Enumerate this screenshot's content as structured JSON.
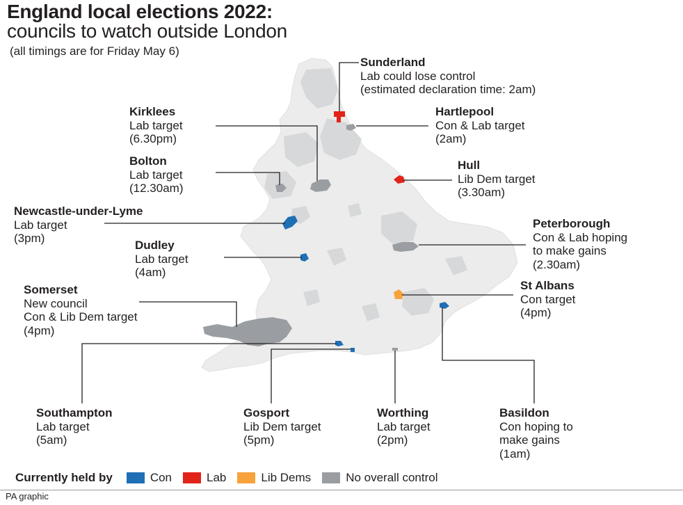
{
  "title": "England local elections 2022:",
  "subtitle": "councils to watch outside London",
  "note": "(all timings are for Friday May 6)",
  "colors": {
    "con": "#1f6fb5",
    "lab": "#e2231a",
    "libdem": "#f7a23b",
    "noc": "#9a9ea3",
    "land": "#ececec",
    "other_councils": "#d6d8da",
    "leader": "#231f20"
  },
  "councils": {
    "sunderland": {
      "name": "Sunderland",
      "lines": [
        "Lab could lose control",
        "(estimated declaration time: 2am)"
      ],
      "party": "lab"
    },
    "hartlepool": {
      "name": "Hartlepool",
      "lines": [
        "Con & Lab target",
        "(2am)"
      ],
      "party": "noc"
    },
    "kirklees": {
      "name": "Kirklees",
      "lines": [
        "Lab target",
        "(6.30pm)"
      ],
      "party": "noc"
    },
    "bolton": {
      "name": "Bolton",
      "lines": [
        "Lab target",
        "(12.30am)"
      ],
      "party": "noc"
    },
    "hull": {
      "name": "Hull",
      "lines": [
        "Lib Dem target",
        "(3.30am)"
      ],
      "party": "lab"
    },
    "newcastle": {
      "name": "Newcastle-under-Lyme",
      "lines": [
        "Lab target",
        "(3pm)"
      ],
      "party": "con"
    },
    "peterborough": {
      "name": "Peterborough",
      "lines": [
        "Con & Lab hoping",
        "to make gains",
        "(2.30am)"
      ],
      "party": "noc"
    },
    "dudley": {
      "name": "Dudley",
      "lines": [
        "Lab target",
        "(4am)"
      ],
      "party": "con"
    },
    "somerset": {
      "name": "Somerset",
      "lines": [
        "New council",
        "Con & Lib Dem target",
        "(4pm)"
      ],
      "party": "noc"
    },
    "stalbans": {
      "name": "St Albans",
      "lines": [
        "Con target",
        "(4pm)"
      ],
      "party": "libdem"
    },
    "southampton": {
      "name": "Southampton",
      "lines": [
        "Lab target",
        "(5am)"
      ],
      "party": "con"
    },
    "gosport": {
      "name": "Gosport",
      "lines": [
        "Lib Dem target",
        "(5pm)"
      ],
      "party": "con"
    },
    "worthing": {
      "name": "Worthing",
      "lines": [
        "Lab target",
        "(2pm)"
      ],
      "party": "noc"
    },
    "basildon": {
      "name": "Basildon",
      "lines": [
        "Con hoping to",
        "make gains",
        "(1am)"
      ],
      "party": "con"
    }
  },
  "legend": {
    "title": "Currently held by",
    "items": [
      {
        "label": "Con",
        "key": "con"
      },
      {
        "label": "Lab",
        "key": "lab"
      },
      {
        "label": "Lib Dems",
        "key": "libdem"
      },
      {
        "label": "No overall control",
        "key": "noc"
      }
    ]
  },
  "credit": "PA graphic"
}
